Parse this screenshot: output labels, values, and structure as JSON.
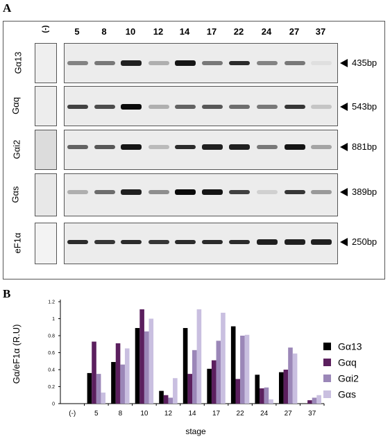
{
  "panels": {
    "a": "A",
    "b": "B"
  },
  "lanes": [
    "(-)",
    "5",
    "8",
    "10",
    "12",
    "14",
    "17",
    "22",
    "24",
    "27",
    "37"
  ],
  "gels": [
    {
      "name": "Gα13",
      "size": "435bp",
      "intensity": [
        0.45,
        0.5,
        0.9,
        0.25,
        0.95,
        0.5,
        0.85,
        0.45,
        0.5,
        0.03
      ]
    },
    {
      "name": "Gαq",
      "size": "543bp",
      "intensity": [
        0.75,
        0.7,
        1.0,
        0.25,
        0.6,
        0.65,
        0.55,
        0.5,
        0.8,
        0.15
      ]
    },
    {
      "name": "Gαi2",
      "size": "881bp",
      "intensity": [
        0.6,
        0.65,
        0.95,
        0.2,
        0.85,
        0.9,
        0.9,
        0.5,
        0.95,
        0.3
      ]
    },
    {
      "name": "Gαs",
      "size": "389bp",
      "intensity": [
        0.25,
        0.55,
        0.9,
        0.4,
        1.0,
        0.95,
        0.75,
        0.1,
        0.8,
        0.35
      ]
    },
    {
      "name": "eF1α",
      "size": "250bp",
      "intensity": [
        0.85,
        0.8,
        0.85,
        0.8,
        0.85,
        0.85,
        0.85,
        0.9,
        0.9,
        0.9
      ]
    }
  ],
  "chart_data": {
    "type": "bar",
    "categories": [
      "(-)",
      "5",
      "8",
      "10",
      "12",
      "14",
      "17",
      "22",
      "24",
      "27",
      "37"
    ],
    "series": [
      {
        "name": "Gα13",
        "color": "#000000",
        "values": [
          0,
          0.36,
          0.49,
          0.89,
          0.15,
          0.89,
          0.41,
          0.91,
          0.34,
          0.37,
          0
        ]
      },
      {
        "name": "Gαq",
        "color": "#5b1f5e",
        "values": [
          0,
          0.73,
          0.71,
          1.11,
          0.1,
          0.35,
          0.51,
          0.29,
          0.18,
          0.4,
          0.04
        ]
      },
      {
        "name": "Gαi2",
        "color": "#9b87b8",
        "values": [
          0,
          0.35,
          0.46,
          0.85,
          0.07,
          0.63,
          0.74,
          0.8,
          0.19,
          0.66,
          0.07
        ]
      },
      {
        "name": "Gαs",
        "color": "#c9bfe0",
        "values": [
          0,
          0.13,
          0.65,
          1.0,
          0.3,
          1.11,
          1.07,
          0.81,
          0.05,
          0.59,
          0.1
        ]
      }
    ],
    "xlabel": "stage",
    "ylabel": "Gα/eF1α (R.U)",
    "ylim": [
      0,
      1.2
    ],
    "yticks": [
      "0",
      "0.2",
      "0.4",
      "0.6",
      "0.8",
      "1",
      "1.2"
    ],
    "legend_position": "right"
  }
}
